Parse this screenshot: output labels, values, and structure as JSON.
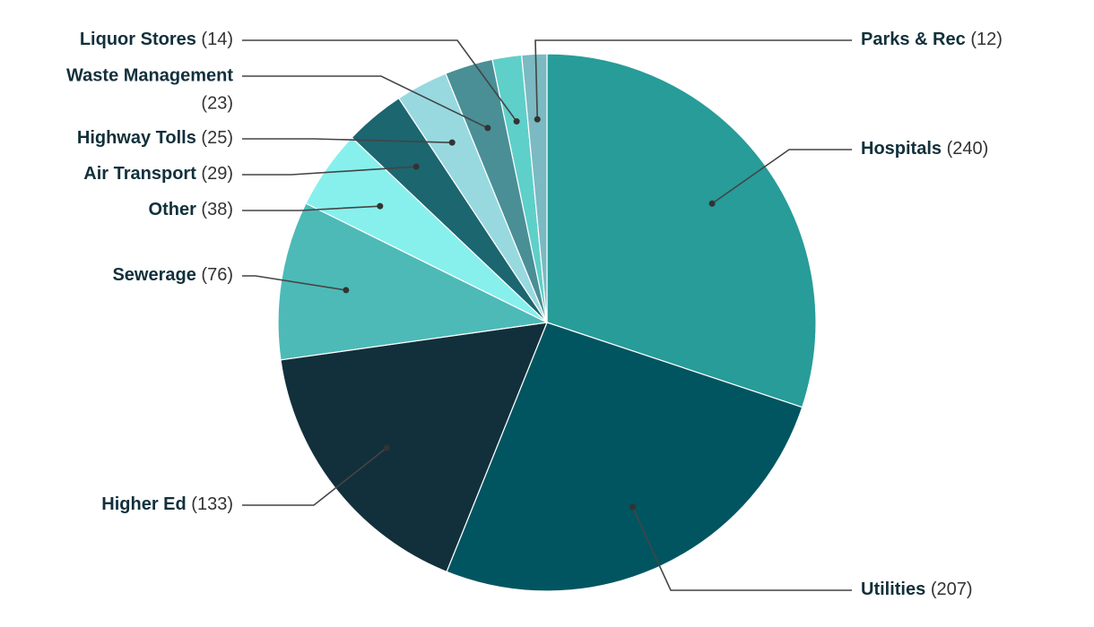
{
  "chart_data": {
    "type": "pie",
    "categories": [
      "Hospitals",
      "Utilities",
      "Higher Ed",
      "Sewerage",
      "Other",
      "Air Transport",
      "Highway Tolls",
      "Waste Management",
      "Liquor Stores",
      "Parks & Rec"
    ],
    "values": [
      240,
      207,
      133,
      76,
      38,
      29,
      25,
      23,
      14,
      12
    ],
    "value_labels": [
      "(240)",
      "(207)",
      "(133)",
      "(76)",
      "(38)",
      "(29)",
      "(25)",
      "(23)",
      "(14)",
      "(12)"
    ],
    "colors": [
      "#279c99",
      "#005561",
      "#12303b",
      "#4dbab7",
      "#87f0ed",
      "#1c6670",
      "#98d9e0",
      "#4a8f96",
      "#5fcfc9",
      "#7bbac2"
    ]
  }
}
